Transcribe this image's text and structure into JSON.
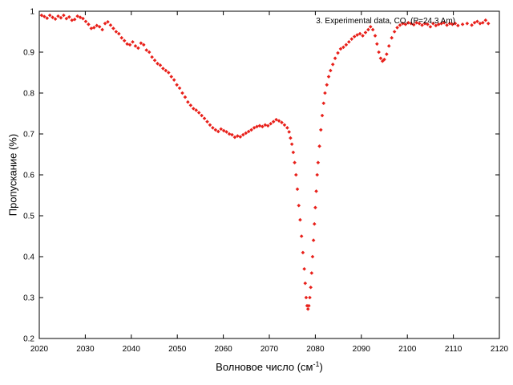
{
  "chart_data": {
    "type": "scatter",
    "xlabel": "Волновое число (см",
    "xlabel_sup": "-1",
    "xlabel_close": ")",
    "ylabel": "Пропускание (%)",
    "xlim": [
      2020,
      2120
    ],
    "ylim": [
      0.2,
      1
    ],
    "x_ticks": [
      2020,
      2030,
      2040,
      2050,
      2060,
      2070,
      2080,
      2090,
      2100,
      2110,
      2120
    ],
    "y_ticks": [
      0.2,
      0.3,
      0.4,
      0.5,
      0.6,
      0.7,
      0.8,
      0.9,
      1
    ],
    "x_tick_labels": [
      "2020",
      "2030",
      "2040",
      "2050",
      "2060",
      "2070",
      "2080",
      "2090",
      "2100",
      "2110",
      "2120"
    ],
    "y_tick_labels": [
      "0.2",
      "0.3",
      "0.4",
      "0.5",
      "0.6",
      "0.7",
      "0.8",
      "0.9",
      "1"
    ],
    "grid": false,
    "legend_position": "top-right",
    "series": [
      {
        "name": "3. Experimental data, CO, (P=24.3 Am)",
        "color": "#e8201a",
        "marker": "diamond",
        "points": [
          [
            2020.5,
            0.99
          ],
          [
            2021.1,
            0.987
          ],
          [
            2021.7,
            0.983
          ],
          [
            2022.3,
            0.99
          ],
          [
            2022.9,
            0.985
          ],
          [
            2023.5,
            0.981
          ],
          [
            2024.1,
            0.988
          ],
          [
            2024.7,
            0.984
          ],
          [
            2025.3,
            0.99
          ],
          [
            2025.9,
            0.982
          ],
          [
            2026.5,
            0.986
          ],
          [
            2027.1,
            0.978
          ],
          [
            2027.7,
            0.98
          ],
          [
            2028.3,
            0.988
          ],
          [
            2028.9,
            0.985
          ],
          [
            2029.5,
            0.982
          ],
          [
            2030.1,
            0.975
          ],
          [
            2030.7,
            0.968
          ],
          [
            2031.3,
            0.958
          ],
          [
            2031.9,
            0.96
          ],
          [
            2032.5,
            0.965
          ],
          [
            2033.1,
            0.962
          ],
          [
            2033.7,
            0.955
          ],
          [
            2034.3,
            0.97
          ],
          [
            2034.9,
            0.974
          ],
          [
            2035.5,
            0.966
          ],
          [
            2036.1,
            0.958
          ],
          [
            2036.7,
            0.95
          ],
          [
            2037.3,
            0.945
          ],
          [
            2037.9,
            0.935
          ],
          [
            2038.5,
            0.928
          ],
          [
            2039.1,
            0.92
          ],
          [
            2039.7,
            0.918
          ],
          [
            2040.3,
            0.925
          ],
          [
            2040.9,
            0.915
          ],
          [
            2041.5,
            0.91
          ],
          [
            2042.1,
            0.922
          ],
          [
            2042.7,
            0.918
          ],
          [
            2043.3,
            0.905
          ],
          [
            2043.9,
            0.9
          ],
          [
            2044.5,
            0.888
          ],
          [
            2045.1,
            0.88
          ],
          [
            2045.7,
            0.872
          ],
          [
            2046.3,
            0.868
          ],
          [
            2046.9,
            0.86
          ],
          [
            2047.5,
            0.855
          ],
          [
            2048.1,
            0.85
          ],
          [
            2048.7,
            0.84
          ],
          [
            2049.3,
            0.832
          ],
          [
            2049.9,
            0.82
          ],
          [
            2050.5,
            0.812
          ],
          [
            2051.1,
            0.8
          ],
          [
            2051.7,
            0.79
          ],
          [
            2052.3,
            0.778
          ],
          [
            2052.9,
            0.77
          ],
          [
            2053.5,
            0.762
          ],
          [
            2054.1,
            0.758
          ],
          [
            2054.7,
            0.752
          ],
          [
            2055.3,
            0.745
          ],
          [
            2055.9,
            0.738
          ],
          [
            2056.5,
            0.73
          ],
          [
            2057.1,
            0.722
          ],
          [
            2057.7,
            0.715
          ],
          [
            2058.3,
            0.71
          ],
          [
            2058.9,
            0.706
          ],
          [
            2059.5,
            0.712
          ],
          [
            2060.1,
            0.708
          ],
          [
            2060.7,
            0.705
          ],
          [
            2061.3,
            0.7
          ],
          [
            2061.9,
            0.698
          ],
          [
            2062.5,
            0.692
          ],
          [
            2063.1,
            0.695
          ],
          [
            2063.7,
            0.693
          ],
          [
            2064.3,
            0.698
          ],
          [
            2064.9,
            0.702
          ],
          [
            2065.5,
            0.706
          ],
          [
            2066.1,
            0.71
          ],
          [
            2066.7,
            0.715
          ],
          [
            2067.3,
            0.718
          ],
          [
            2067.9,
            0.72
          ],
          [
            2068.5,
            0.718
          ],
          [
            2069.1,
            0.722
          ],
          [
            2069.7,
            0.72
          ],
          [
            2070.3,
            0.725
          ],
          [
            2070.9,
            0.73
          ],
          [
            2071.5,
            0.735
          ],
          [
            2072.1,
            0.732
          ],
          [
            2072.7,
            0.728
          ],
          [
            2073.3,
            0.722
          ],
          [
            2073.9,
            0.715
          ],
          [
            2074.3,
            0.705
          ],
          [
            2074.6,
            0.69
          ],
          [
            2074.9,
            0.675
          ],
          [
            2075.2,
            0.655
          ],
          [
            2075.5,
            0.63
          ],
          [
            2075.8,
            0.6
          ],
          [
            2076.1,
            0.565
          ],
          [
            2076.4,
            0.525
          ],
          [
            2076.7,
            0.49
          ],
          [
            2077.0,
            0.45
          ],
          [
            2077.3,
            0.41
          ],
          [
            2077.6,
            0.37
          ],
          [
            2077.8,
            0.335
          ],
          [
            2078.0,
            0.3
          ],
          [
            2078.2,
            0.28
          ],
          [
            2078.4,
            0.272
          ],
          [
            2078.6,
            0.28
          ],
          [
            2078.8,
            0.3
          ],
          [
            2079.0,
            0.325
          ],
          [
            2079.2,
            0.36
          ],
          [
            2079.4,
            0.4
          ],
          [
            2079.6,
            0.44
          ],
          [
            2079.8,
            0.48
          ],
          [
            2080.0,
            0.52
          ],
          [
            2080.2,
            0.56
          ],
          [
            2080.4,
            0.6
          ],
          [
            2080.6,
            0.63
          ],
          [
            2080.9,
            0.67
          ],
          [
            2081.2,
            0.71
          ],
          [
            2081.5,
            0.745
          ],
          [
            2081.8,
            0.775
          ],
          [
            2082.1,
            0.8
          ],
          [
            2082.5,
            0.82
          ],
          [
            2082.9,
            0.84
          ],
          [
            2083.3,
            0.855
          ],
          [
            2083.8,
            0.87
          ],
          [
            2084.3,
            0.885
          ],
          [
            2084.9,
            0.898
          ],
          [
            2085.5,
            0.908
          ],
          [
            2086.1,
            0.912
          ],
          [
            2086.7,
            0.918
          ],
          [
            2087.3,
            0.925
          ],
          [
            2087.9,
            0.932
          ],
          [
            2088.5,
            0.938
          ],
          [
            2089.1,
            0.942
          ],
          [
            2089.7,
            0.945
          ],
          [
            2090.3,
            0.94
          ],
          [
            2090.9,
            0.948
          ],
          [
            2091.5,
            0.955
          ],
          [
            2092.0,
            0.962
          ],
          [
            2092.5,
            0.955
          ],
          [
            2093.0,
            0.94
          ],
          [
            2093.4,
            0.92
          ],
          [
            2093.8,
            0.9
          ],
          [
            2094.2,
            0.885
          ],
          [
            2094.6,
            0.878
          ],
          [
            2095.0,
            0.882
          ],
          [
            2095.5,
            0.895
          ],
          [
            2096.0,
            0.915
          ],
          [
            2096.6,
            0.935
          ],
          [
            2097.2,
            0.95
          ],
          [
            2097.8,
            0.96
          ],
          [
            2098.4,
            0.966
          ],
          [
            2099.0,
            0.97
          ],
          [
            2099.6,
            0.968
          ],
          [
            2100.2,
            0.972
          ],
          [
            2100.8,
            0.97
          ],
          [
            2101.4,
            0.967
          ],
          [
            2102.0,
            0.972
          ],
          [
            2102.6,
            0.97
          ],
          [
            2103.2,
            0.966
          ],
          [
            2103.8,
            0.97
          ],
          [
            2104.4,
            0.968
          ],
          [
            2105.0,
            0.962
          ],
          [
            2105.6,
            0.97
          ],
          [
            2106.2,
            0.965
          ],
          [
            2106.8,
            0.968
          ],
          [
            2107.4,
            0.97
          ],
          [
            2108.0,
            0.972
          ],
          [
            2108.6,
            0.966
          ],
          [
            2109.2,
            0.97
          ],
          [
            2109.8,
            0.968
          ],
          [
            2110.4,
            0.97
          ],
          [
            2111.0,
            0.965
          ],
          [
            2112.0,
            0.968
          ],
          [
            2113.0,
            0.97
          ],
          [
            2114.0,
            0.966
          ],
          [
            2114.6,
            0.972
          ],
          [
            2115.2,
            0.975
          ],
          [
            2115.8,
            0.97
          ],
          [
            2116.4,
            0.972
          ],
          [
            2117.0,
            0.978
          ],
          [
            2117.6,
            0.97
          ]
        ]
      }
    ]
  }
}
